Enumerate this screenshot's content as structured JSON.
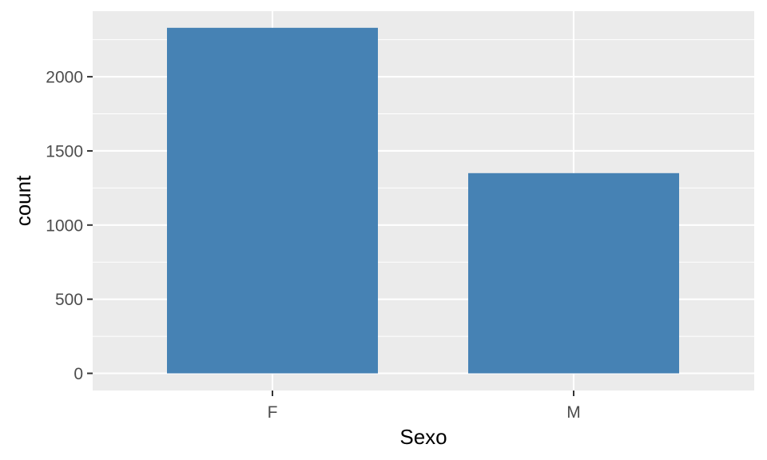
{
  "chart_data": {
    "type": "bar",
    "title": "",
    "xlabel": "Sexo",
    "ylabel": "count",
    "categories": [
      "F",
      "M"
    ],
    "values": [
      2330,
      1350
    ],
    "ylim": [
      0,
      2450
    ],
    "y_ticks": [
      0,
      500,
      1000,
      1500,
      2000
    ],
    "y_tick_labels": [
      "0",
      "500",
      "1000",
      "1500",
      "2000"
    ],
    "grid": true,
    "legend": "none",
    "colors": {
      "bar": "#4682b4",
      "panel_background": "#ebebeb",
      "grid": "#ffffff",
      "tick_text": "#4d4d4d",
      "title_text": "#000000"
    }
  }
}
